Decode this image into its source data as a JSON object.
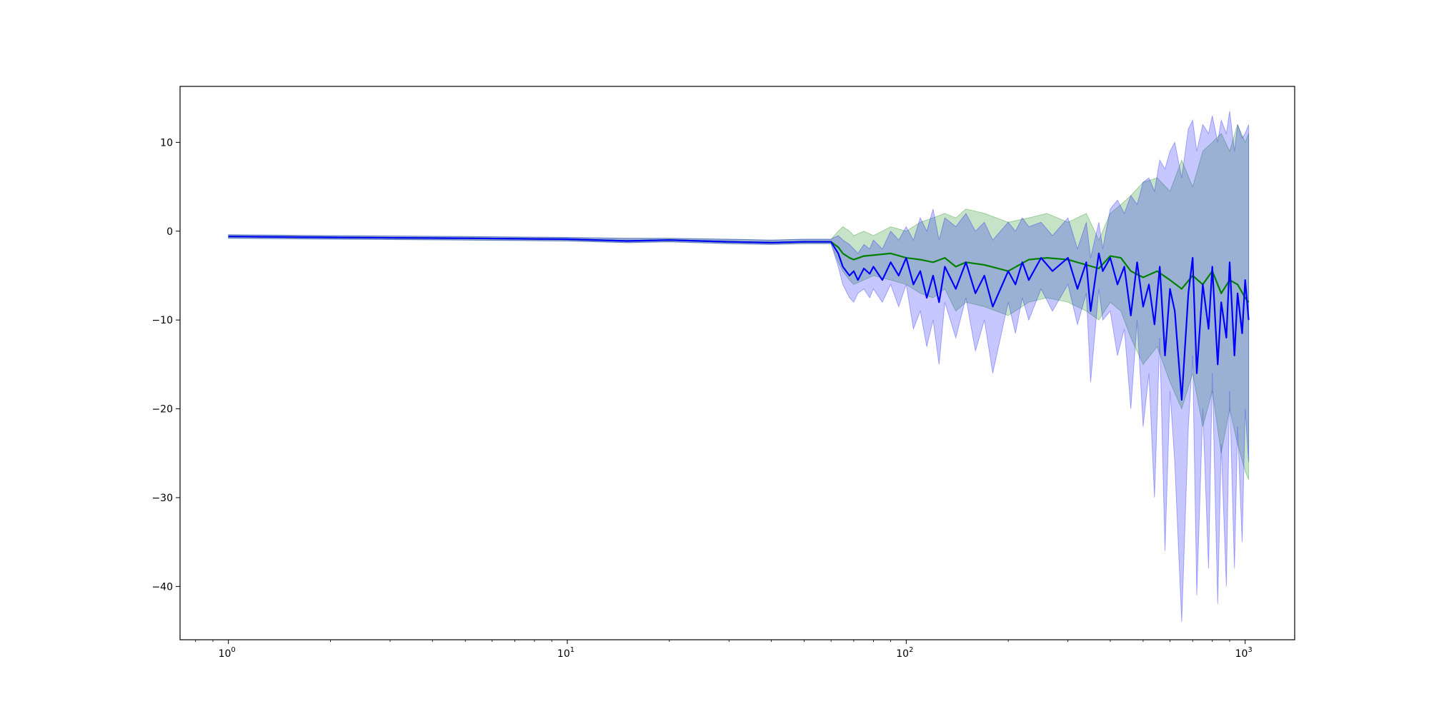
{
  "chart_data": {
    "type": "line",
    "title": "",
    "xlabel": "",
    "ylabel": "",
    "xscale": "log",
    "xlim": [
      0.72,
      1400
    ],
    "ylim": [
      -46,
      16.3
    ],
    "grid": false,
    "x_ticks": [
      {
        "value": 1,
        "base": "10",
        "exp": "0"
      },
      {
        "value": 10,
        "base": "10",
        "exp": "1"
      },
      {
        "value": 100,
        "base": "10",
        "exp": "2"
      },
      {
        "value": 1000,
        "base": "10",
        "exp": "3"
      }
    ],
    "y_ticks": [
      {
        "value": 10,
        "label": "10"
      },
      {
        "value": 0,
        "label": "0"
      },
      {
        "value": -10,
        "label": "−10"
      },
      {
        "value": -20,
        "label": "−20"
      },
      {
        "value": -30,
        "label": "−30"
      },
      {
        "value": -40,
        "label": "−40"
      }
    ],
    "series": [
      {
        "color": "#008000",
        "band_color": "#008000",
        "x": [
          1,
          2,
          5,
          10,
          15,
          20,
          30,
          40,
          50,
          60,
          63,
          65,
          68,
          70,
          75,
          80,
          90,
          100,
          110,
          120,
          130,
          140,
          150,
          170,
          200,
          230,
          260,
          300,
          340,
          370,
          400,
          430,
          460,
          500,
          550,
          600,
          650,
          700,
          750,
          800,
          850,
          900,
          950,
          1000,
          1024
        ],
        "y": [
          -0.6,
          -0.7,
          -0.8,
          -0.9,
          -1.1,
          -1.0,
          -1.2,
          -1.3,
          -1.2,
          -1.2,
          -1.8,
          -2.5,
          -3.0,
          -3.2,
          -2.8,
          -2.7,
          -2.5,
          -3.0,
          -3.2,
          -3.5,
          -3.0,
          -4.0,
          -3.5,
          -3.8,
          -4.5,
          -3.2,
          -3.0,
          -3.2,
          -3.8,
          -4.2,
          -2.8,
          -3.0,
          -4.5,
          -5.2,
          -4.5,
          -5.5,
          -6.5,
          -5.0,
          -6.0,
          -4.5,
          -7.0,
          -5.5,
          -6.0,
          -7.5,
          -8.0
        ],
        "upper": [
          -0.4,
          -0.5,
          -0.6,
          -0.7,
          -0.8,
          -0.8,
          -0.9,
          -1.0,
          -0.9,
          -0.9,
          0.0,
          0.5,
          0.0,
          -0.5,
          0.0,
          -0.5,
          0.5,
          0.0,
          1.0,
          1.5,
          2.0,
          1.5,
          2.5,
          2.0,
          1.0,
          1.5,
          2.0,
          1.0,
          2.0,
          -1.0,
          2.0,
          3.0,
          4.0,
          5.5,
          6.0,
          4.5,
          8.0,
          5.0,
          9.0,
          10.0,
          11.0,
          9.0,
          12.0,
          10.0,
          11.0
        ],
        "lower": [
          -0.8,
          -0.9,
          -1.0,
          -1.1,
          -1.3,
          -1.2,
          -1.4,
          -1.5,
          -1.4,
          -1.4,
          -3.5,
          -4.5,
          -5.5,
          -6.0,
          -5.5,
          -5.0,
          -5.5,
          -6.0,
          -7.0,
          -7.5,
          -6.5,
          -9.0,
          -8.0,
          -8.5,
          -9.5,
          -8.0,
          -7.5,
          -8.0,
          -9.0,
          -10.0,
          -8.0,
          -9.0,
          -12.0,
          -15.0,
          -13.0,
          -17.0,
          -20.0,
          -16.0,
          -22.0,
          -18.0,
          -25.0,
          -20.0,
          -24.0,
          -27.0,
          -28.0
        ]
      },
      {
        "color": "#0000ff",
        "band_color": "#0000ff",
        "x": [
          1,
          2,
          5,
          10,
          15,
          20,
          30,
          40,
          50,
          60,
          63,
          65,
          68,
          70,
          72,
          75,
          78,
          80,
          85,
          90,
          95,
          100,
          105,
          110,
          115,
          120,
          125,
          130,
          140,
          150,
          160,
          170,
          180,
          200,
          210,
          220,
          230,
          250,
          270,
          300,
          320,
          340,
          350,
          370,
          380,
          400,
          420,
          440,
          460,
          480,
          500,
          520,
          540,
          560,
          580,
          600,
          620,
          650,
          680,
          700,
          720,
          750,
          780,
          800,
          830,
          850,
          880,
          900,
          930,
          950,
          980,
          1000,
          1024
        ],
        "y": [
          -0.6,
          -0.7,
          -0.8,
          -0.9,
          -1.1,
          -1.0,
          -1.2,
          -1.3,
          -1.2,
          -1.2,
          -2.5,
          -4.0,
          -5.0,
          -4.5,
          -5.5,
          -4.2,
          -4.8,
          -4.0,
          -5.5,
          -3.5,
          -5.0,
          -3.0,
          -6.0,
          -4.5,
          -7.5,
          -5.0,
          -8.0,
          -4.0,
          -6.5,
          -3.5,
          -7.0,
          -5.0,
          -8.5,
          -4.5,
          -6.0,
          -3.5,
          -5.5,
          -3.0,
          -4.5,
          -3.0,
          -6.5,
          -3.5,
          -9.0,
          -2.5,
          -4.5,
          -3.0,
          -6.0,
          -4.0,
          -9.5,
          -3.5,
          -8.5,
          -6.0,
          -10.5,
          -4.0,
          -14.0,
          -6.5,
          -9.0,
          -19.0,
          -7.0,
          -3.0,
          -16.0,
          -6.0,
          -11.0,
          -4.0,
          -15.0,
          -8.0,
          -12.0,
          -3.5,
          -14.0,
          -7.0,
          -11.5,
          -5.5,
          -10.0
        ],
        "upper": [
          -0.4,
          -0.5,
          -0.6,
          -0.7,
          -0.8,
          -0.8,
          -0.9,
          -1.0,
          -0.9,
          -0.9,
          -0.5,
          -1.0,
          -1.5,
          -2.0,
          -2.5,
          -1.5,
          -2.0,
          -1.0,
          -2.0,
          0.0,
          -1.0,
          0.5,
          -1.0,
          1.5,
          0.0,
          2.5,
          -1.0,
          1.5,
          0.5,
          2.0,
          0.0,
          1.0,
          -1.0,
          1.0,
          0.0,
          1.5,
          0.5,
          1.0,
          -0.5,
          1.5,
          -2.0,
          1.0,
          -3.0,
          1.0,
          -2.0,
          2.5,
          3.5,
          2.0,
          4.0,
          3.0,
          5.5,
          6.0,
          4.5,
          8.0,
          7.0,
          9.0,
          10.0,
          6.0,
          11.5,
          12.5,
          9.0,
          12.0,
          11.0,
          13.0,
          10.0,
          12.5,
          11.0,
          13.5,
          9.0,
          12.0,
          10.5,
          11.0,
          12.0
        ],
        "lower": [
          -0.8,
          -0.9,
          -1.0,
          -1.1,
          -1.3,
          -1.2,
          -1.4,
          -1.5,
          -1.4,
          -1.4,
          -4.0,
          -6.0,
          -7.5,
          -8.0,
          -7.0,
          -6.5,
          -7.5,
          -6.5,
          -8.0,
          -6.0,
          -8.5,
          -6.0,
          -11.0,
          -9.0,
          -13.0,
          -10.0,
          -15.0,
          -8.0,
          -12.0,
          -7.5,
          -13.5,
          -10.0,
          -16.0,
          -8.0,
          -11.5,
          -7.5,
          -10.0,
          -6.5,
          -9.0,
          -6.0,
          -10.5,
          -7.0,
          -17.0,
          -6.5,
          -10.0,
          -9.0,
          -14.0,
          -11.0,
          -20.0,
          -10.0,
          -22.0,
          -16.0,
          -30.0,
          -12.0,
          -36.0,
          -18.0,
          -26.0,
          -44.0,
          -22.0,
          -14.0,
          -41.0,
          -20.0,
          -38.0,
          -16.0,
          -42.0,
          -24.0,
          -40.0,
          -18.0,
          -38.0,
          -22.0,
          -35.0,
          -20.0,
          -26.0
        ]
      }
    ]
  }
}
